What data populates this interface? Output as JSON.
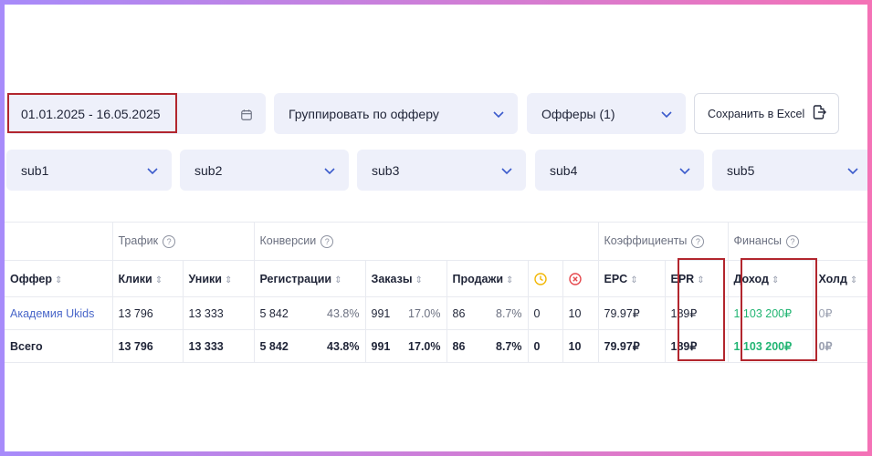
{
  "filters": {
    "date_range": "01.01.2025 - 16.05.2025",
    "group_by": "Группировать по офферу",
    "offers": "Офферы (1)",
    "export_label": "Сохранить в Excel",
    "subs": [
      "sub1",
      "sub2",
      "sub3",
      "sub4",
      "sub5"
    ]
  },
  "table": {
    "groups": {
      "traffic": "Трафик",
      "conversions": "Конверсии",
      "coefficients": "Коэффициенты",
      "finance": "Финансы"
    },
    "headers": {
      "offer": "Оффер",
      "clicks": "Клики",
      "uniques": "Уники",
      "registrations": "Регистрации",
      "orders": "Заказы",
      "sales": "Продажи",
      "epc": "EPC",
      "epr": "EPR",
      "income": "Доход",
      "hold": "Холд"
    },
    "rows": [
      {
        "offer": "Академия Ukids",
        "clicks": "13 796",
        "uniques": "13 333",
        "registrations": "5 842",
        "reg_pct": "43.8%",
        "orders": "991",
        "orders_pct": "17.0%",
        "sales": "86",
        "sales_pct": "8.7%",
        "pending": "0",
        "rejected": "10",
        "epc": "79.97₽",
        "epr": "189₽",
        "income": "1 103 200₽",
        "hold": "0₽"
      }
    ],
    "total": {
      "offer": "Всего",
      "clicks": "13 796",
      "uniques": "13 333",
      "registrations": "5 842",
      "reg_pct": "43.8%",
      "orders": "991",
      "orders_pct": "17.0%",
      "sales": "86",
      "sales_pct": "8.7%",
      "pending": "0",
      "rejected": "10",
      "epc": "79.97₽",
      "epr": "189₽",
      "income": "1 103 200₽",
      "hold": "0₽"
    }
  },
  "colors": {
    "accent_link": "#4a67c9",
    "income_green": "#22b573",
    "highlight_red": "#b2262e",
    "pending_icon": "#f2b705",
    "rejected_icon": "#e5484d"
  },
  "icons": {
    "date": "calendar-icon",
    "dropdown": "chevron-down-icon",
    "export": "file-export-icon",
    "help": "question-circle-icon",
    "pending": "clock-icon",
    "rejected": "x-circle-icon",
    "sort": "sort-icon"
  }
}
